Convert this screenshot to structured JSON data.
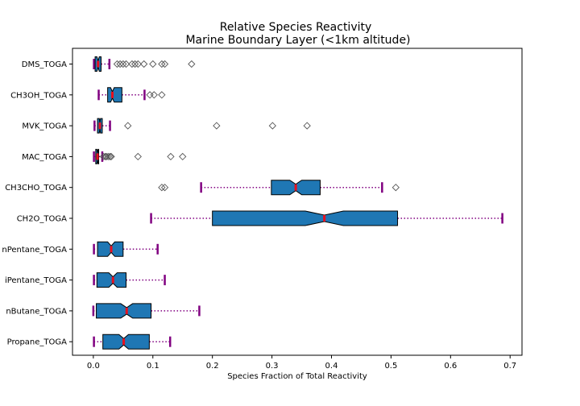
{
  "chart_data": {
    "type": "boxplot",
    "orientation": "horizontal",
    "notched": true,
    "title_lines": [
      "Relative Species Reactivity",
      "Marine Boundary Layer (<1km altitude)"
    ],
    "xlabel": "Species Fraction of Total Reactivity",
    "ylabel": "",
    "xlim": [
      -0.035,
      0.72
    ],
    "xticks": [
      0.0,
      0.1,
      0.2,
      0.3,
      0.4,
      0.5,
      0.6,
      0.7
    ],
    "xtick_labels": [
      "0.0",
      "0.1",
      "0.2",
      "0.3",
      "0.4",
      "0.5",
      "0.6",
      "0.7"
    ],
    "grid": false,
    "colors": {
      "box_fill": "#1f77b4",
      "median": "#e8101e",
      "whisker": "#800080",
      "flier": "#555555"
    },
    "series": [
      {
        "name": "DMS_TOGA",
        "whislo": 0.001,
        "q1": 0.003,
        "med": 0.008,
        "q3": 0.013,
        "whishi": 0.027,
        "notch_lo": 0.006,
        "notch_hi": 0.01,
        "fliers": [
          0.04,
          0.045,
          0.05,
          0.055,
          0.065,
          0.07,
          0.075,
          0.085,
          0.1,
          0.115,
          0.12,
          0.165
        ]
      },
      {
        "name": "CH3OH_TOGA",
        "whislo": 0.009,
        "q1": 0.024,
        "med": 0.032,
        "q3": 0.048,
        "whishi": 0.086,
        "notch_lo": 0.029,
        "notch_hi": 0.035,
        "fliers": [
          0.095,
          0.102,
          0.115
        ]
      },
      {
        "name": "MVK_TOGA",
        "whislo": 0.002,
        "q1": 0.007,
        "med": 0.011,
        "q3": 0.015,
        "whishi": 0.028,
        "notch_lo": 0.01,
        "notch_hi": 0.012,
        "fliers": [
          0.058,
          0.207,
          0.301,
          0.359
        ]
      },
      {
        "name": "MAC_TOGA",
        "whislo": 0.001,
        "q1": 0.004,
        "med": 0.007,
        "q3": 0.009,
        "whishi": 0.015,
        "notch_lo": 0.006,
        "notch_hi": 0.008,
        "fliers": [
          0.017,
          0.02,
          0.022,
          0.025,
          0.028,
          0.03,
          0.075,
          0.13,
          0.15
        ]
      },
      {
        "name": "CH3CHO_TOGA",
        "whislo": 0.181,
        "q1": 0.299,
        "med": 0.34,
        "q3": 0.381,
        "whishi": 0.485,
        "notch_lo": 0.33,
        "notch_hi": 0.35,
        "fliers": [
          0.115,
          0.12,
          0.508
        ]
      },
      {
        "name": "CH2O_TOGA",
        "whislo": 0.097,
        "q1": 0.2,
        "med": 0.388,
        "q3": 0.511,
        "whishi": 0.687,
        "notch_lo": 0.356,
        "notch_hi": 0.42,
        "fliers": []
      },
      {
        "name": "nPentane_TOGA",
        "whislo": 0.001,
        "q1": 0.007,
        "med": 0.03,
        "q3": 0.05,
        "whishi": 0.108,
        "notch_lo": 0.024,
        "notch_hi": 0.036,
        "fliers": []
      },
      {
        "name": "iPentane_TOGA",
        "whislo": 0.001,
        "q1": 0.006,
        "med": 0.033,
        "q3": 0.055,
        "whishi": 0.12,
        "notch_lo": 0.026,
        "notch_hi": 0.04,
        "fliers": []
      },
      {
        "name": "nButane_TOGA",
        "whislo": 0.0,
        "q1": 0.005,
        "med": 0.056,
        "q3": 0.097,
        "whishi": 0.178,
        "notch_lo": 0.046,
        "notch_hi": 0.066,
        "fliers": []
      },
      {
        "name": "Propane_TOGA",
        "whislo": 0.001,
        "q1": 0.016,
        "med": 0.051,
        "q3": 0.094,
        "whishi": 0.129,
        "notch_lo": 0.043,
        "notch_hi": 0.059,
        "fliers": []
      }
    ]
  }
}
